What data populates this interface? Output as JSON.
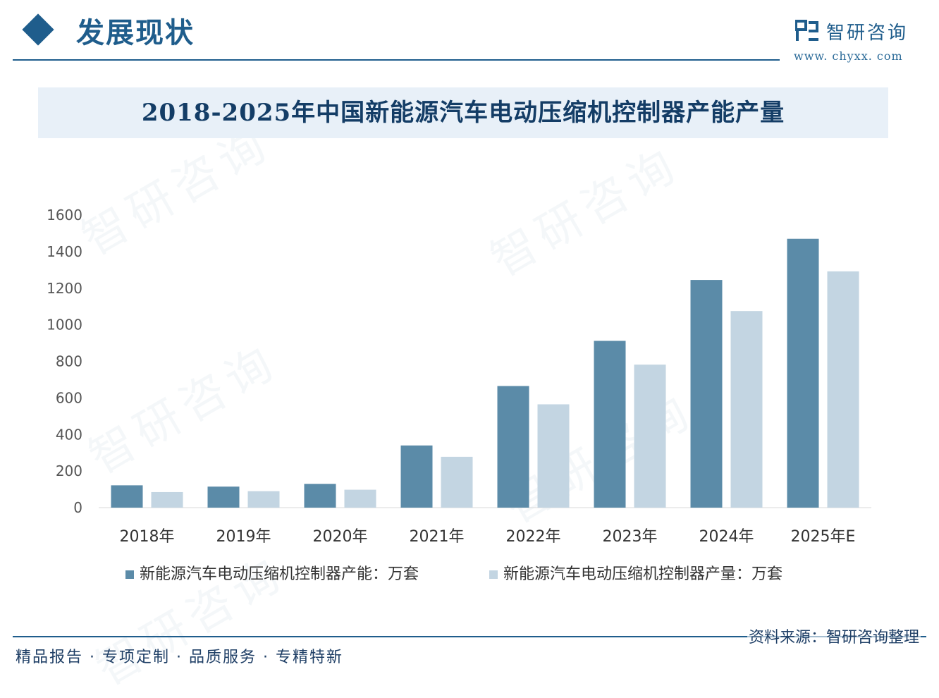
{
  "header": {
    "section_title": "发展现状",
    "brand_name": "智研咨询",
    "brand_url": "www. chyxx. com"
  },
  "watermark": "智研咨询",
  "colors": {
    "primary": "#5b8ba8",
    "secondary": "#c3d5e2",
    "accent": "#1f5d8c",
    "banner": "#e8f0f8"
  },
  "chart_data": {
    "type": "bar",
    "title": "2018-2025年中国新能源汽车电动压缩机控制器产能产量",
    "categories": [
      "2018年",
      "2019年",
      "2020年",
      "2021年",
      "2022年",
      "2023年",
      "2024年",
      "2025年E"
    ],
    "series": [
      {
        "name": "新能源汽车电动压缩机控制器产能：万套",
        "color": "#5b8ba8",
        "values": [
          122,
          115,
          130,
          340,
          665,
          912,
          1245,
          1470
        ]
      },
      {
        "name": "新能源汽车电动压缩机控制器产量：万套",
        "color": "#c3d5e2",
        "values": [
          85,
          90,
          98,
          278,
          565,
          782,
          1075,
          1292
        ]
      }
    ],
    "ylim": [
      0,
      1600
    ],
    "yticks": [
      0,
      200,
      400,
      600,
      800,
      1000,
      1200,
      1400,
      1600
    ],
    "grid": false,
    "legend_position": "bottom",
    "xlabel": "",
    "ylabel": ""
  },
  "footer": {
    "tagline": "精品报告 · 专项定制 · 品质服务 · 专精特新",
    "source": "资料来源：智研咨询整理"
  }
}
